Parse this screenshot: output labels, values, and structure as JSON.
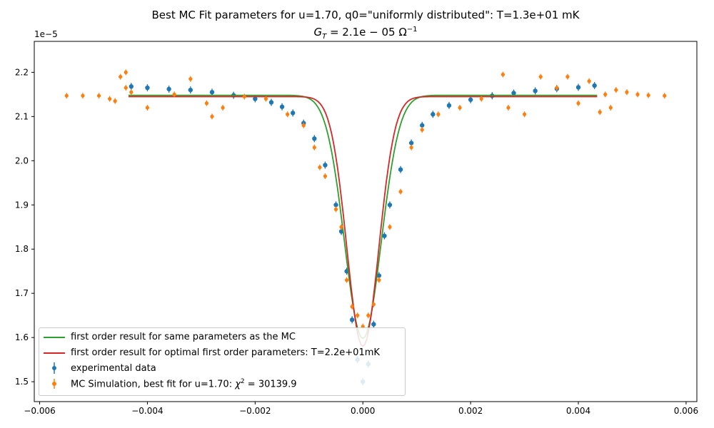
{
  "title_line1": "Best MC Fit parameters for u=1.70, q0=\"uniformly distributed\":  T=1.3e+01 mK",
  "title_line2_prefix": "G",
  "title_line2_sub": "T",
  "title_line2_mid": " = 2.1e − 05 Ω",
  "title_line2_sup": "−1",
  "colors": {
    "experimental": "#1f77b4",
    "mc": "#ff7f0e",
    "first_order_same": "#2ca02c",
    "first_order_optimal": "#d62728"
  },
  "chart_data": {
    "type": "scatter",
    "xlim": [
      -0.0061,
      0.0062
    ],
    "ylim": [
      1.455e-05,
      2.27e-05
    ],
    "grid": false,
    "legend_position": "lower left",
    "y_offset_label": "1e−5",
    "x_tick_labels": [
      "−0.006",
      "−0.004",
      "−0.002",
      "0.000",
      "0.002",
      "0.004",
      "0.006"
    ],
    "x_tick_values": [
      -0.006,
      -0.004,
      -0.002,
      0.0,
      0.002,
      0.004,
      0.006
    ],
    "y_tick_labels": [
      "1.5",
      "1.6",
      "1.7",
      "1.8",
      "1.9",
      "2.0",
      "2.1",
      "2.2"
    ],
    "y_tick_values": [
      1.5e-05,
      1.6e-05,
      1.7e-05,
      1.8e-05,
      1.9e-05,
      2e-05,
      2.1e-05,
      2.2e-05
    ],
    "series": [
      {
        "name": "first order result for same parameters as the MC",
        "kind": "line",
        "color": "#2ca02c",
        "model": {
          "baseline": 2.148e-05,
          "depth": 5.5e-06,
          "width": 0.00048,
          "x_min": -0.00435,
          "x_max": 0.00435
        }
      },
      {
        "name": "first order result for optimal first order parameters: T=2.2e+01mK",
        "kind": "line",
        "color": "#d62728",
        "model": {
          "baseline": 2.145e-05,
          "depth": 5.65e-06,
          "width": 0.00042,
          "x_min": -0.00435,
          "x_max": 0.00435
        }
      },
      {
        "name": "experimental data",
        "kind": "errorbar",
        "color": "#1f77b4",
        "points": [
          {
            "x": -0.0043,
            "y": 2.168e-05
          },
          {
            "x": -0.004,
            "y": 2.165e-05
          },
          {
            "x": -0.0036,
            "y": 2.162e-05
          },
          {
            "x": -0.0032,
            "y": 2.16e-05
          },
          {
            "x": -0.0028,
            "y": 2.155e-05
          },
          {
            "x": -0.0024,
            "y": 2.148e-05
          },
          {
            "x": -0.002,
            "y": 2.14e-05
          },
          {
            "x": -0.0017,
            "y": 2.132e-05
          },
          {
            "x": -0.0015,
            "y": 2.122e-05
          },
          {
            "x": -0.0013,
            "y": 2.108e-05
          },
          {
            "x": -0.0011,
            "y": 2.085e-05
          },
          {
            "x": -0.0009,
            "y": 2.05e-05
          },
          {
            "x": -0.0007,
            "y": 1.99e-05
          },
          {
            "x": -0.0005,
            "y": 1.9e-05
          },
          {
            "x": -0.0004,
            "y": 1.84e-05
          },
          {
            "x": -0.0003,
            "y": 1.75e-05
          },
          {
            "x": -0.0002,
            "y": 1.64e-05
          },
          {
            "x": -0.0001,
            "y": 1.55e-05
          },
          {
            "x": 0.0,
            "y": 1.5e-05
          },
          {
            "x": 0.0001,
            "y": 1.54e-05
          },
          {
            "x": 0.0002,
            "y": 1.63e-05
          },
          {
            "x": 0.0003,
            "y": 1.74e-05
          },
          {
            "x": 0.0004,
            "y": 1.83e-05
          },
          {
            "x": 0.0005,
            "y": 1.9e-05
          },
          {
            "x": 0.0007,
            "y": 1.98e-05
          },
          {
            "x": 0.0009,
            "y": 2.04e-05
          },
          {
            "x": 0.0011,
            "y": 2.08e-05
          },
          {
            "x": 0.0013,
            "y": 2.105e-05
          },
          {
            "x": 0.0016,
            "y": 2.125e-05
          },
          {
            "x": 0.002,
            "y": 2.138e-05
          },
          {
            "x": 0.0024,
            "y": 2.147e-05
          },
          {
            "x": 0.0028,
            "y": 2.153e-05
          },
          {
            "x": 0.0032,
            "y": 2.158e-05
          },
          {
            "x": 0.0036,
            "y": 2.163e-05
          },
          {
            "x": 0.004,
            "y": 2.166e-05
          },
          {
            "x": 0.0043,
            "y": 2.17e-05
          }
        ]
      },
      {
        "name": "MC Simulation, best fit for u=1.70:  χ² = 30139.9",
        "kind": "errorbar",
        "color": "#ff7f0e",
        "points": [
          {
            "x": -0.0055,
            "y": 2.147e-05
          },
          {
            "x": -0.0052,
            "y": 2.147e-05
          },
          {
            "x": -0.0049,
            "y": 2.147e-05
          },
          {
            "x": -0.0047,
            "y": 2.14e-05
          },
          {
            "x": -0.0046,
            "y": 2.135e-05
          },
          {
            "x": -0.0045,
            "y": 2.19e-05
          },
          {
            "x": -0.0044,
            "y": 2.165e-05
          },
          {
            "x": -0.0044,
            "y": 2.2e-05
          },
          {
            "x": -0.0043,
            "y": 2.155e-05
          },
          {
            "x": -0.004,
            "y": 2.12e-05
          },
          {
            "x": -0.0035,
            "y": 2.15e-05
          },
          {
            "x": -0.0032,
            "y": 2.185e-05
          },
          {
            "x": -0.0029,
            "y": 2.13e-05
          },
          {
            "x": -0.0028,
            "y": 2.1e-05
          },
          {
            "x": -0.0026,
            "y": 2.12e-05
          },
          {
            "x": -0.0022,
            "y": 2.145e-05
          },
          {
            "x": -0.0018,
            "y": 2.14e-05
          },
          {
            "x": -0.0014,
            "y": 2.105e-05
          },
          {
            "x": -0.0011,
            "y": 2.08e-05
          },
          {
            "x": -0.0009,
            "y": 2.03e-05
          },
          {
            "x": -0.0008,
            "y": 1.985e-05
          },
          {
            "x": -0.0007,
            "y": 1.965e-05
          },
          {
            "x": -0.0005,
            "y": 1.89e-05
          },
          {
            "x": -0.0004,
            "y": 1.85e-05
          },
          {
            "x": -0.0003,
            "y": 1.73e-05
          },
          {
            "x": -0.0002,
            "y": 1.67e-05
          },
          {
            "x": -0.0001,
            "y": 1.65e-05
          },
          {
            "x": 0.0,
            "y": 1.625e-05
          },
          {
            "x": 0.0001,
            "y": 1.65e-05
          },
          {
            "x": 0.0002,
            "y": 1.675e-05
          },
          {
            "x": 0.0003,
            "y": 1.73e-05
          },
          {
            "x": 0.0005,
            "y": 1.85e-05
          },
          {
            "x": 0.0007,
            "y": 1.93e-05
          },
          {
            "x": 0.0009,
            "y": 2.03e-05
          },
          {
            "x": 0.0011,
            "y": 2.07e-05
          },
          {
            "x": 0.0014,
            "y": 2.105e-05
          },
          {
            "x": 0.0018,
            "y": 2.12e-05
          },
          {
            "x": 0.0022,
            "y": 2.14e-05
          },
          {
            "x": 0.0026,
            "y": 2.195e-05
          },
          {
            "x": 0.0027,
            "y": 2.12e-05
          },
          {
            "x": 0.003,
            "y": 2.105e-05
          },
          {
            "x": 0.0033,
            "y": 2.19e-05
          },
          {
            "x": 0.0036,
            "y": 2.165e-05
          },
          {
            "x": 0.0038,
            "y": 2.19e-05
          },
          {
            "x": 0.004,
            "y": 2.13e-05
          },
          {
            "x": 0.0042,
            "y": 2.18e-05
          },
          {
            "x": 0.0044,
            "y": 2.11e-05
          },
          {
            "x": 0.0045,
            "y": 2.15e-05
          },
          {
            "x": 0.0046,
            "y": 2.12e-05
          },
          {
            "x": 0.0047,
            "y": 2.16e-05
          },
          {
            "x": 0.0049,
            "y": 2.155e-05
          },
          {
            "x": 0.0051,
            "y": 2.15e-05
          },
          {
            "x": 0.0053,
            "y": 2.148e-05
          },
          {
            "x": 0.0056,
            "y": 2.147e-05
          }
        ]
      }
    ]
  },
  "legend": {
    "line1_label": "first order result for same parameters as the MC",
    "line2_label": "first order result for optimal first order parameters: T=2.2e+01mK",
    "line3_label": "experimental data",
    "line4_label_prefix": "MC Simulation, best fit for u=1.70:  ",
    "line4_label_chi": "χ",
    "line4_label_chi_sup": "2",
    "line4_label_value": " = 30139.9"
  }
}
